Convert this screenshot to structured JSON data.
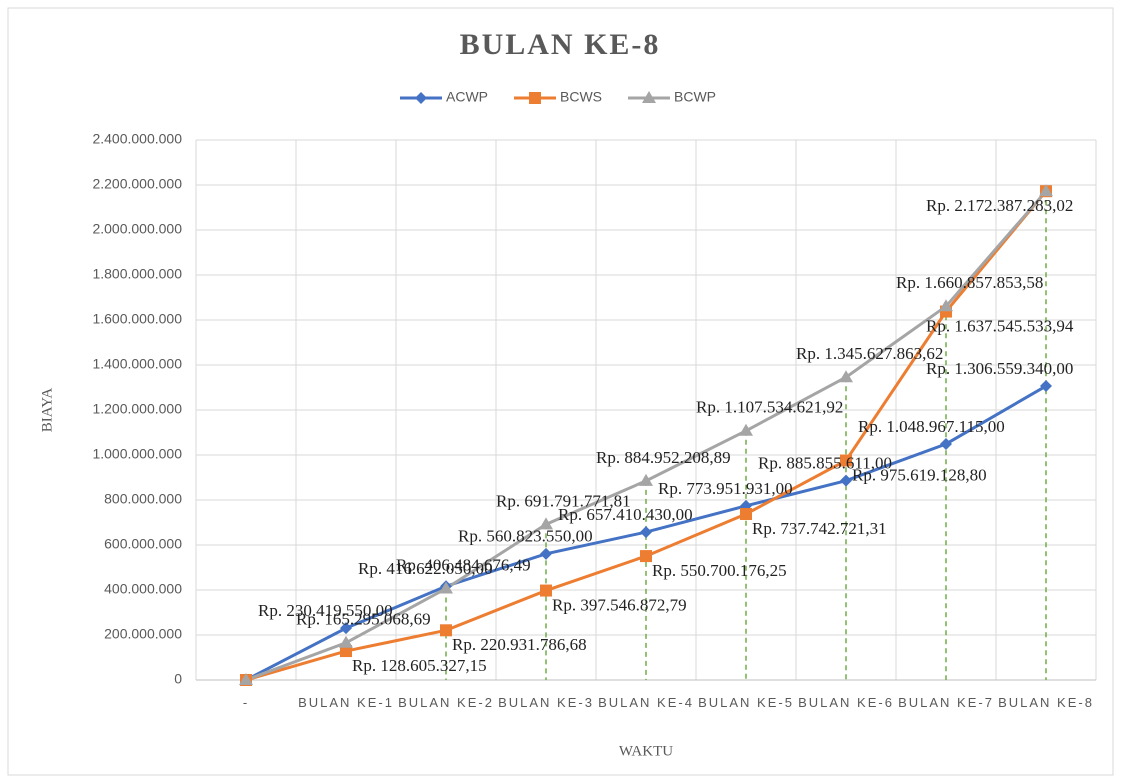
{
  "chart_data": {
    "type": "line",
    "title": "BULAN KE-8",
    "x_label": "WAKTU",
    "y_label": "BIAYA",
    "categories": [
      "-",
      "BULAN KE-1",
      "BULAN KE-2",
      "BULAN KE-3",
      "BULAN KE-4",
      "BULAN KE-5",
      "BULAN KE-6",
      "BULAN KE-7",
      "BULAN KE-8"
    ],
    "series": [
      {
        "name": "ACWP",
        "color": "#4472c4",
        "values": [
          0,
          230419550.0,
          416622050.0,
          560823550.0,
          657410430.0,
          773951931.0,
          885855611.0,
          1048967115.0,
          1306559340.0
        ],
        "value_labels": [
          null,
          "Rp. 230.419.550,00",
          "Rp. 416.622.050,00",
          "Rp. 560.823.550,00",
          "Rp. 657.410.430,00",
          "Rp. 773.951.931,00",
          "Rp. 885.855.611,00",
          "Rp. 1.048.967.115,00",
          "Rp. 1.306.559.340,00"
        ]
      },
      {
        "name": "BCWS",
        "color": "#ed7d31",
        "values": [
          0,
          128605327.15,
          220931786.68,
          397546872.79,
          550700176.25,
          737742721.31,
          975619128.8,
          1637545533.94,
          2172387283.02
        ],
        "value_labels": [
          null,
          "Rp. 128.605.327,15",
          "Rp. 220.931.786,68",
          "Rp. 397.546.872,79",
          "Rp. 550.700.176,25",
          "Rp. 737.742.721,31",
          "Rp. 975.619.128,80",
          "Rp. 1.637.545.533,94",
          "Rp. 2.172.387.283,02"
        ]
      },
      {
        "name": "BCWP",
        "color": "#a5a5a5",
        "values": [
          0,
          165295068.69,
          406484676.49,
          691791771.81,
          884952208.89,
          1107534621.92,
          1345627863.62,
          1660857853.58,
          2172387283.02
        ],
        "value_labels": [
          null,
          "Rp. 165.295.068,69",
          "Rp. 406.484.676,49",
          "Rp. 691.791.771,81",
          "Rp. 884.952.208,89",
          "Rp. 1.107.534.621,92",
          "Rp. 1.345.627.863,62",
          "Rp. 1.660.857.853,58",
          null
        ]
      }
    ],
    "ylim": [
      0,
      2400000000
    ],
    "yticks": [
      0,
      {
        "value": 200000000,
        "label": "200.000.000"
      },
      {
        "value": 400000000,
        "label": "400.000.000"
      },
      {
        "value": 600000000,
        "label": "600.000.000"
      },
      {
        "value": 800000000,
        "label": "800.000.000"
      },
      {
        "value": 1000000000,
        "label": "1.000.000.000"
      },
      {
        "value": 1200000000,
        "label": "1.200.000.000"
      },
      {
        "value": 1400000000,
        "label": "1.400.000.000"
      },
      {
        "value": 1600000000,
        "label": "1.600.000.000"
      },
      {
        "value": 1800000000,
        "label": "1.800.000.000"
      },
      {
        "value": 2000000000,
        "label": "2.000.000.000"
      },
      {
        "value": 2200000000,
        "label": "2.200.000.000"
      },
      {
        "value": 2400000000,
        "label": "2.400.000.000"
      }
    ],
    "grid": true,
    "legend": "top",
    "drop_line_color": "#70ad47"
  }
}
